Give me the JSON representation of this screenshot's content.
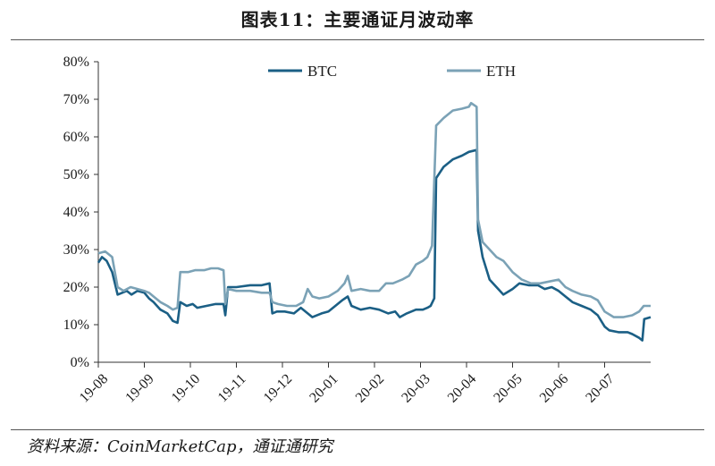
{
  "title": "图表11：主要通证月波动率",
  "source": "资料来源：CoinMarketCap，通证通研究",
  "chart_data": {
    "type": "line",
    "ylim": [
      0,
      80
    ],
    "yticks": [
      0,
      10,
      20,
      30,
      40,
      50,
      60,
      70,
      80
    ],
    "yunit": "%",
    "xlim": [
      0,
      12
    ],
    "xticks": [
      {
        "label": "19-08",
        "x": 0
      },
      {
        "label": "19-09",
        "x": 1
      },
      {
        "label": "19-10",
        "x": 2
      },
      {
        "label": "19-11",
        "x": 3
      },
      {
        "label": "19-12",
        "x": 4
      },
      {
        "label": "20-01",
        "x": 5
      },
      {
        "label": "20-02",
        "x": 6
      },
      {
        "label": "20-03",
        "x": 7
      },
      {
        "label": "20-04",
        "x": 8
      },
      {
        "label": "20-05",
        "x": 9
      },
      {
        "label": "20-06",
        "x": 10
      },
      {
        "label": "20-07",
        "x": 11
      }
    ],
    "legend_position": "top",
    "series": [
      {
        "name": "BTC",
        "color": "#1b5f85",
        "points": [
          [
            0.0,
            26.5
          ],
          [
            0.08,
            28
          ],
          [
            0.18,
            27
          ],
          [
            0.3,
            24
          ],
          [
            0.42,
            18
          ],
          [
            0.52,
            18.5
          ],
          [
            0.62,
            19
          ],
          [
            0.72,
            18
          ],
          [
            0.85,
            19
          ],
          [
            1.0,
            18.5
          ],
          [
            1.1,
            17
          ],
          [
            1.2,
            16
          ],
          [
            1.35,
            14
          ],
          [
            1.5,
            13
          ],
          [
            1.62,
            11
          ],
          [
            1.72,
            10.5
          ],
          [
            1.78,
            16
          ],
          [
            1.92,
            15
          ],
          [
            2.05,
            15.5
          ],
          [
            2.15,
            14.5
          ],
          [
            2.35,
            15
          ],
          [
            2.55,
            15.5
          ],
          [
            2.72,
            15.5
          ],
          [
            2.76,
            12.5
          ],
          [
            2.82,
            20
          ],
          [
            3.0,
            20
          ],
          [
            3.3,
            20.5
          ],
          [
            3.55,
            20.5
          ],
          [
            3.72,
            21
          ],
          [
            3.78,
            13
          ],
          [
            3.88,
            13.5
          ],
          [
            4.05,
            13.5
          ],
          [
            4.25,
            13
          ],
          [
            4.4,
            14.5
          ],
          [
            4.55,
            13
          ],
          [
            4.65,
            12
          ],
          [
            4.85,
            13
          ],
          [
            5.0,
            13.5
          ],
          [
            5.15,
            15
          ],
          [
            5.3,
            16.5
          ],
          [
            5.42,
            17.5
          ],
          [
            5.5,
            15
          ],
          [
            5.7,
            14
          ],
          [
            5.9,
            14.5
          ],
          [
            6.1,
            14
          ],
          [
            6.3,
            13
          ],
          [
            6.45,
            13.5
          ],
          [
            6.55,
            12
          ],
          [
            6.7,
            13
          ],
          [
            6.9,
            14
          ],
          [
            7.05,
            14
          ],
          [
            7.15,
            14.5
          ],
          [
            7.22,
            15
          ],
          [
            7.3,
            17
          ],
          [
            7.34,
            49
          ],
          [
            7.5,
            52
          ],
          [
            7.7,
            54
          ],
          [
            7.9,
            55
          ],
          [
            8.05,
            56
          ],
          [
            8.22,
            56.5
          ],
          [
            8.25,
            35
          ],
          [
            8.35,
            28
          ],
          [
            8.5,
            22
          ],
          [
            8.65,
            20
          ],
          [
            8.8,
            18
          ],
          [
            9.0,
            19.5
          ],
          [
            9.15,
            21
          ],
          [
            9.35,
            20.5
          ],
          [
            9.55,
            20.5
          ],
          [
            9.7,
            19.5
          ],
          [
            9.85,
            20
          ],
          [
            10.0,
            19
          ],
          [
            10.15,
            17.5
          ],
          [
            10.3,
            16
          ],
          [
            10.5,
            15
          ],
          [
            10.7,
            14
          ],
          [
            10.85,
            12.5
          ],
          [
            11.0,
            9.5
          ],
          [
            11.1,
            8.5
          ],
          [
            11.3,
            8
          ],
          [
            11.5,
            8
          ],
          [
            11.6,
            7.5
          ],
          [
            11.75,
            6.5
          ],
          [
            11.82,
            5.8
          ],
          [
            11.86,
            11.5
          ],
          [
            12.0,
            12
          ]
        ]
      },
      {
        "name": "ETH",
        "color": "#7ba2b6",
        "points": [
          [
            0.0,
            29
          ],
          [
            0.15,
            29.5
          ],
          [
            0.3,
            28
          ],
          [
            0.42,
            20
          ],
          [
            0.55,
            19
          ],
          [
            0.7,
            20
          ],
          [
            0.85,
            19.5
          ],
          [
            1.0,
            19
          ],
          [
            1.1,
            18.5
          ],
          [
            1.2,
            17.5
          ],
          [
            1.35,
            16
          ],
          [
            1.5,
            15
          ],
          [
            1.62,
            14
          ],
          [
            1.72,
            14.5
          ],
          [
            1.78,
            24
          ],
          [
            1.95,
            24
          ],
          [
            2.1,
            24.5
          ],
          [
            2.3,
            24.5
          ],
          [
            2.45,
            25
          ],
          [
            2.6,
            25
          ],
          [
            2.72,
            24.5
          ],
          [
            2.76,
            15.5
          ],
          [
            2.82,
            19.5
          ],
          [
            3.0,
            19
          ],
          [
            3.3,
            19
          ],
          [
            3.55,
            18.5
          ],
          [
            3.72,
            18.5
          ],
          [
            3.78,
            16
          ],
          [
            3.9,
            15.5
          ],
          [
            4.1,
            15
          ],
          [
            4.3,
            15
          ],
          [
            4.45,
            16
          ],
          [
            4.55,
            19.5
          ],
          [
            4.65,
            17.5
          ],
          [
            4.8,
            17
          ],
          [
            5.0,
            17.5
          ],
          [
            5.2,
            19
          ],
          [
            5.35,
            21
          ],
          [
            5.42,
            23
          ],
          [
            5.5,
            19
          ],
          [
            5.7,
            19.5
          ],
          [
            5.9,
            19
          ],
          [
            6.1,
            19
          ],
          [
            6.25,
            21
          ],
          [
            6.4,
            21
          ],
          [
            6.6,
            22
          ],
          [
            6.75,
            23
          ],
          [
            6.9,
            26
          ],
          [
            7.05,
            27
          ],
          [
            7.15,
            28
          ],
          [
            7.25,
            31
          ],
          [
            7.34,
            63
          ],
          [
            7.5,
            65
          ],
          [
            7.7,
            67
          ],
          [
            7.9,
            67.5
          ],
          [
            8.05,
            68
          ],
          [
            8.1,
            69
          ],
          [
            8.22,
            68
          ],
          [
            8.25,
            38
          ],
          [
            8.35,
            32
          ],
          [
            8.5,
            30
          ],
          [
            8.65,
            28
          ],
          [
            8.8,
            27
          ],
          [
            9.0,
            24
          ],
          [
            9.2,
            22
          ],
          [
            9.4,
            21
          ],
          [
            9.6,
            21
          ],
          [
            9.8,
            21.5
          ],
          [
            10.0,
            22
          ],
          [
            10.15,
            20
          ],
          [
            10.3,
            19
          ],
          [
            10.5,
            18
          ],
          [
            10.7,
            17.5
          ],
          [
            10.85,
            16.5
          ],
          [
            11.0,
            13.5
          ],
          [
            11.2,
            12
          ],
          [
            11.4,
            12
          ],
          [
            11.6,
            12.5
          ],
          [
            11.75,
            13.5
          ],
          [
            11.85,
            15
          ],
          [
            12.0,
            15
          ]
        ]
      }
    ]
  }
}
